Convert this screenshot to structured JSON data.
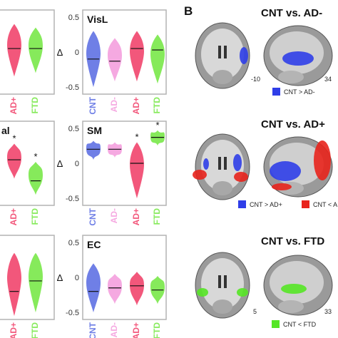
{
  "panel_b": {
    "letter": "B",
    "rows": [
      {
        "title": "CNT vs. AD-",
        "coronal_label": "-10",
        "sagittal_label": "34",
        "legend": [
          {
            "text": "CNT > AD-",
            "color": "#2f3ee8"
          }
        ]
      },
      {
        "title": "CNT vs. AD+",
        "coronal_label": "",
        "sagittal_label": "",
        "legend": [
          {
            "text": "CNT > AD+",
            "color": "#2f3ee8"
          },
          {
            "text": "CNT < A",
            "color": "#e8231c"
          }
        ]
      },
      {
        "title": "CNT vs. FTD",
        "coronal_label": "5",
        "sagittal_label": "33",
        "legend": [
          {
            "text": "CNT < FTD",
            "color": "#55e625"
          }
        ]
      }
    ]
  },
  "colors": {
    "CNT": "#6f7fe6",
    "AD-": "#f5a9e1",
    "AD+": "#f2577b",
    "FTD": "#86ea5b",
    "frame": "#b3b3b3"
  },
  "chart_data": [
    {
      "type": "violin",
      "title": "",
      "ylabel": "Δ",
      "categories": [
        "AD+",
        "FTD"
      ],
      "values": [
        {
          "median": 0.05,
          "min": -0.35,
          "max": 0.4
        },
        {
          "median": 0.05,
          "min": -0.3,
          "max": 0.35
        }
      ],
      "significance": [
        "",
        ""
      ]
    },
    {
      "type": "violin",
      "title": "VisL",
      "ylabel": "Δ",
      "ylim": [
        -0.6,
        0.6
      ],
      "ticks": [
        "0.5",
        "0",
        "-0.5"
      ],
      "categories": [
        "CNT",
        "AD-",
        "AD+",
        "FTD"
      ],
      "values": [
        {
          "median": -0.1,
          "min": -0.5,
          "max": 0.3
        },
        {
          "median": -0.13,
          "min": -0.42,
          "max": 0.2
        },
        {
          "median": 0.05,
          "min": -0.42,
          "max": 0.3
        },
        {
          "median": 0.03,
          "min": -0.45,
          "max": 0.25
        }
      ],
      "significance": [
        "",
        "",
        "",
        ""
      ]
    },
    {
      "type": "violin",
      "title": "al",
      "ylabel": "Δ",
      "categories": [
        "AD+",
        "FTD"
      ],
      "values": [
        {
          "median": 0.05,
          "min": -0.22,
          "max": 0.28
        },
        {
          "median": -0.25,
          "min": -0.45,
          "max": 0.02
        }
      ],
      "significance": [
        "*",
        "*"
      ]
    },
    {
      "type": "violin",
      "title": "SM",
      "ylabel": "Δ",
      "ylim": [
        -0.6,
        0.6
      ],
      "ticks": [
        "0.5",
        "0",
        "-0.5"
      ],
      "categories": [
        "CNT",
        "AD-",
        "AD+",
        "FTD"
      ],
      "values": [
        {
          "median": 0.2,
          "min": 0.05,
          "max": 0.32
        },
        {
          "median": 0.2,
          "min": 0.08,
          "max": 0.3
        },
        {
          "median": 0.0,
          "min": -0.5,
          "max": 0.3
        },
        {
          "median": 0.37,
          "min": 0.25,
          "max": 0.47
        }
      ],
      "significance": [
        "",
        "",
        "*",
        "*"
      ]
    },
    {
      "type": "violin",
      "title": "",
      "ylabel": "Δ",
      "categories": [
        "AD+",
        "FTD"
      ],
      "values": [
        {
          "median": -0.2,
          "min": -0.55,
          "max": 0.35
        },
        {
          "median": -0.05,
          "min": -0.5,
          "max": 0.35
        }
      ],
      "significance": [
        "",
        ""
      ]
    },
    {
      "type": "violin",
      "title": "EC",
      "ylabel": "Δ",
      "ylim": [
        -0.6,
        0.6
      ],
      "ticks": [
        "0.5",
        "0",
        "-0.5"
      ],
      "categories": [
        "CNT",
        "AD-",
        "AD+",
        "FTD"
      ],
      "values": [
        {
          "median": -0.2,
          "min": -0.5,
          "max": 0.2
        },
        {
          "median": -0.15,
          "min": -0.38,
          "max": 0.05
        },
        {
          "median": -0.12,
          "min": -0.4,
          "max": 0.08
        },
        {
          "median": -0.18,
          "min": -0.38,
          "max": 0.02
        }
      ],
      "significance": [
        "",
        "",
        "",
        ""
      ]
    }
  ]
}
